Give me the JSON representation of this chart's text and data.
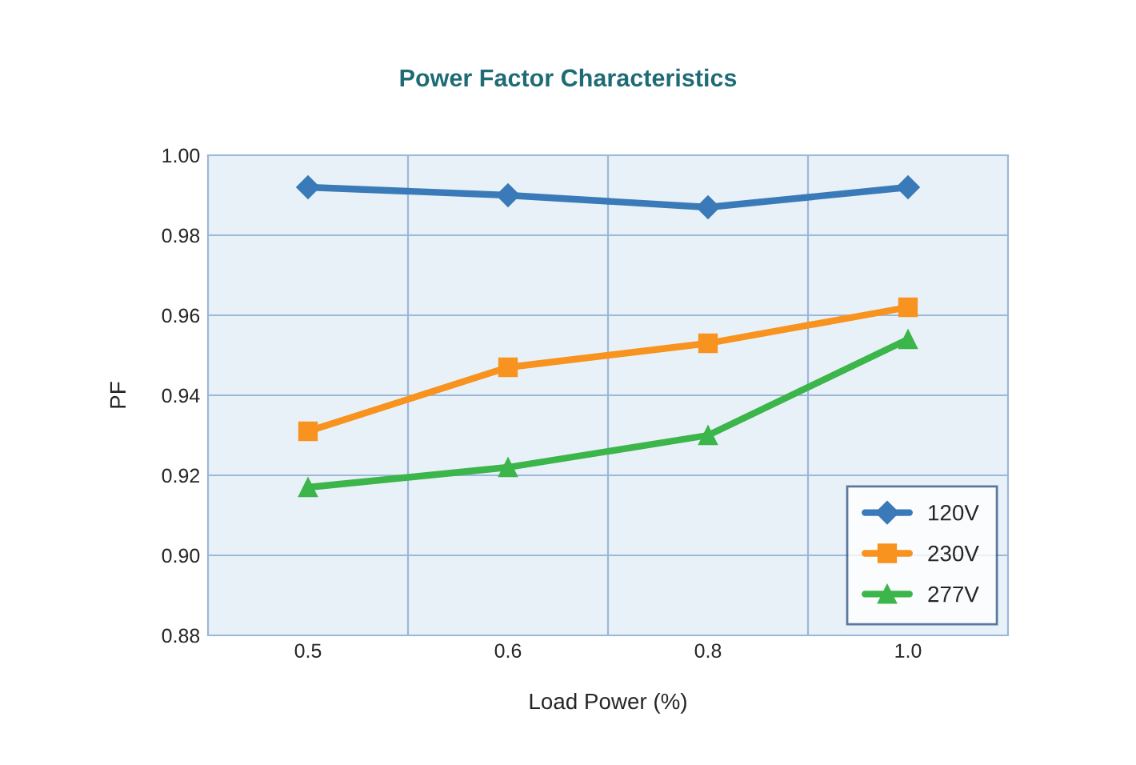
{
  "chart_data": {
    "type": "line",
    "title": "Power Factor Characteristics",
    "xlabel": "Load Power (%)",
    "ylabel": "PF",
    "categories": [
      "0.5",
      "0.6",
      "0.8",
      "1.0"
    ],
    "series": [
      {
        "name": "120V",
        "color": "#3a7ab8",
        "marker": "diamond",
        "values": [
          0.992,
          0.99,
          0.987,
          0.992
        ]
      },
      {
        "name": "230V",
        "color": "#f7931e",
        "marker": "square",
        "values": [
          0.931,
          0.947,
          0.953,
          0.962
        ]
      },
      {
        "name": "277V",
        "color": "#3cb54a",
        "marker": "triangle",
        "values": [
          0.917,
          0.922,
          0.93,
          0.954
        ]
      }
    ],
    "ylim": [
      0.88,
      1.0
    ],
    "yticks": [
      {
        "value": 0.88,
        "label": "0.88"
      },
      {
        "value": 0.9,
        "label": "0.90"
      },
      {
        "value": 0.92,
        "label": "0.92"
      },
      {
        "value": 0.94,
        "label": "0.94"
      },
      {
        "value": 0.96,
        "label": "0.96"
      },
      {
        "value": 0.98,
        "label": "0.98"
      },
      {
        "value": 1.0,
        "label": "1.00"
      }
    ],
    "grid": true,
    "legend": "bottom right",
    "line_style": "solid"
  }
}
